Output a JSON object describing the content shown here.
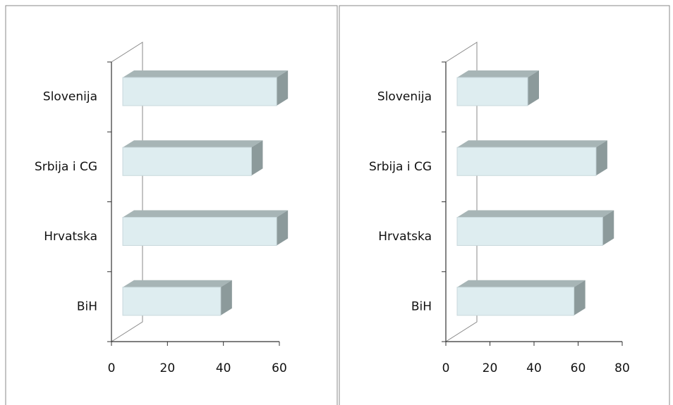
{
  "chart_data": [
    {
      "type": "bar3d",
      "categories": [
        "Slovenija",
        "Srbija i CG",
        "Hrvatska",
        "BiH"
      ],
      "values": [
        55,
        46,
        55,
        35
      ],
      "color": "#deedf0",
      "xlim": [
        0,
        60
      ],
      "xticks": [
        0,
        20,
        40,
        60
      ]
    },
    {
      "type": "bar3d",
      "categories": [
        "Slovenija",
        "Srbija i CG",
        "Hrvatska",
        "BiH"
      ],
      "values": [
        32,
        63,
        66,
        53
      ],
      "color": "#deedf0",
      "xlim": [
        0,
        80
      ],
      "xticks": [
        0,
        20,
        40,
        60,
        80
      ]
    }
  ]
}
